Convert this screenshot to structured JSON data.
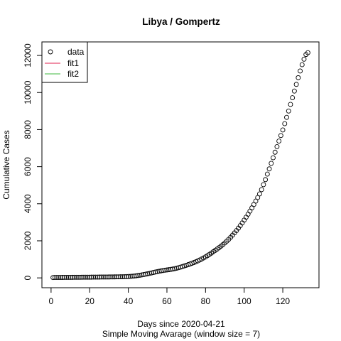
{
  "chart_data": {
    "type": "scatter",
    "title": "Libya / Gompertz",
    "xlabel": "Days since 2020-04-21",
    "xlabel2": "Simple Moving Avarage (window size = 7)",
    "ylabel": "Cumulative Cases",
    "xlim": [
      1,
      133
    ],
    "ylim": [
      0,
      12200
    ],
    "xticks": [
      0,
      20,
      40,
      60,
      80,
      100,
      120
    ],
    "yticks": [
      0,
      2000,
      4000,
      6000,
      8000,
      10000,
      12000
    ],
    "legend": {
      "position": "top-left",
      "entries": [
        {
          "label": "data",
          "kind": "point",
          "color": "#000000"
        },
        {
          "label": "fit1",
          "kind": "line",
          "color": "#e2204f"
        },
        {
          "label": "fit2",
          "kind": "line",
          "color": "#3cb83c"
        }
      ]
    },
    "series": [
      {
        "x": [
          1,
          2,
          3,
          4,
          5,
          6,
          7,
          8,
          9,
          10,
          11,
          12,
          13,
          14,
          15,
          16,
          17,
          18,
          19,
          20,
          21,
          22,
          23,
          24,
          25,
          26,
          27,
          28,
          29,
          30,
          31,
          32,
          33,
          34,
          35,
          36,
          37,
          38,
          39,
          40,
          41,
          42,
          43,
          44,
          45,
          46,
          47,
          48,
          49,
          50,
          51,
          52,
          53,
          54,
          55,
          56,
          57,
          58,
          59,
          60,
          61,
          62,
          63,
          64,
          65,
          66,
          67,
          68,
          69,
          70,
          71,
          72,
          73,
          74,
          75,
          76,
          77,
          78,
          79,
          80,
          81,
          82,
          83,
          84,
          85,
          86,
          87,
          88,
          89,
          90,
          91,
          92,
          93,
          94,
          95,
          96,
          97,
          98,
          99,
          100,
          101,
          102,
          103,
          104,
          105,
          106,
          107,
          108,
          109,
          110,
          111,
          112,
          113,
          114,
          115,
          116,
          117,
          118,
          119,
          120,
          121,
          122,
          123,
          124,
          125,
          126,
          127,
          128,
          129,
          130,
          131,
          132,
          133
        ],
        "y": [
          20,
          21,
          22,
          23,
          24,
          25,
          26,
          27,
          28,
          29,
          30,
          31,
          32,
          33,
          34,
          35,
          36,
          37,
          38,
          39,
          40,
          41,
          42,
          43,
          44,
          45,
          46,
          47,
          48,
          49,
          50,
          52,
          54,
          56,
          58,
          60,
          63,
          66,
          70,
          75,
          82,
          90,
          100,
          112,
          126,
          142,
          160,
          180,
          200,
          222,
          245,
          268,
          292,
          315,
          338,
          360,
          380,
          398,
          414,
          428,
          442,
          458,
          476,
          498,
          522,
          550,
          580,
          612,
          646,
          680,
          715,
          752,
          790,
          830,
          872,
          918,
          968,
          1020,
          1076,
          1136,
          1200,
          1268,
          1338,
          1410,
          1482,
          1556,
          1632,
          1712,
          1796,
          1886,
          1982,
          2084,
          2192,
          2306,
          2426,
          2552,
          2684,
          2822,
          2966,
          3116,
          3272,
          3434,
          3602,
          3776,
          3956,
          4142,
          4334,
          4530,
          4760,
          5030,
          5300,
          5600,
          5880,
          6180,
          6480,
          6780,
          7080,
          7380,
          7680,
          7980,
          8320,
          8660,
          9000,
          9360,
          9720,
          10080,
          10440,
          10800,
          11160,
          11500,
          11800,
          12050,
          12150
        ]
      }
    ]
  }
}
